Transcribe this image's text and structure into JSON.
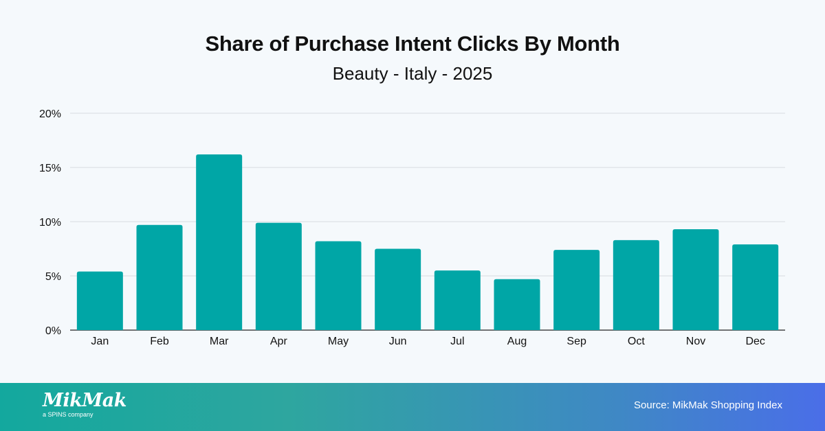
{
  "chart_data": {
    "type": "bar",
    "title": "Share of Purchase Intent Clicks By Month",
    "subtitle": "Beauty - Italy - 2025",
    "categories": [
      "Jan",
      "Feb",
      "Mar",
      "Apr",
      "May",
      "Jun",
      "Jul",
      "Aug",
      "Sep",
      "Oct",
      "Nov",
      "Dec"
    ],
    "values": [
      5.4,
      9.7,
      16.2,
      9.9,
      8.2,
      7.5,
      5.5,
      4.7,
      7.4,
      8.3,
      9.3,
      7.9
    ],
    "ylim": [
      0,
      20
    ],
    "yticks": [
      0,
      5,
      10,
      15,
      20
    ],
    "ytick_labels": [
      "0%",
      "5%",
      "10%",
      "15%",
      "20%"
    ],
    "xlabel": "",
    "ylabel": "",
    "grid": true,
    "bar_color": "#00a6a6"
  },
  "footer": {
    "logo_text": "MikMak",
    "logo_tagline": "a SPINS company",
    "source": "Source: MikMak Shopping Index"
  }
}
